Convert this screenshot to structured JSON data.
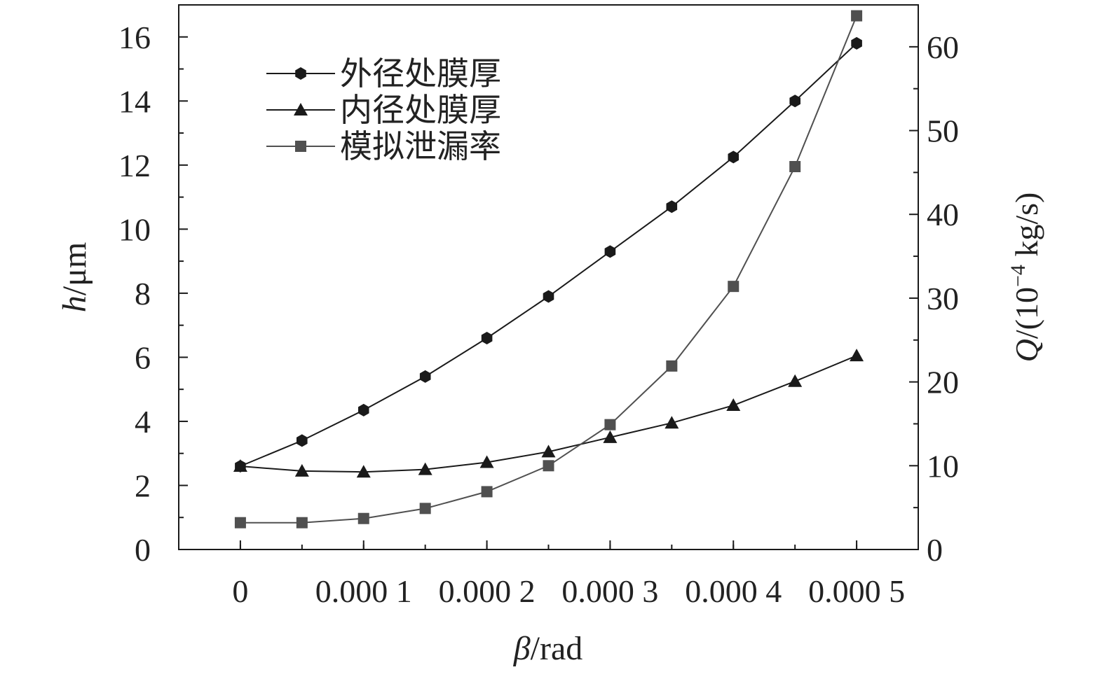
{
  "chart_data": {
    "type": "line",
    "title": "",
    "x": [
      0,
      5e-05,
      0.0001,
      0.00015,
      0.0002,
      0.00025,
      0.0003,
      0.00035,
      0.0004,
      0.00045,
      0.0005
    ],
    "xlim": [
      -5e-05,
      0.00055
    ],
    "xticks": [
      {
        "value": 0,
        "label": "0"
      },
      {
        "value": 0.0001,
        "label": "0.000 1"
      },
      {
        "value": 0.0002,
        "label": "0.000 2"
      },
      {
        "value": 0.0003,
        "label": "0.000 3"
      },
      {
        "value": 0.0004,
        "label": "0.000 4"
      },
      {
        "value": 0.0005,
        "label": "0.000 5"
      }
    ],
    "xlabel": {
      "italic": "β",
      "rest": "/rad"
    },
    "y_left": {
      "label": {
        "italic": "h",
        "rest": "/μm"
      },
      "ylim": [
        0,
        17
      ],
      "ticks": [
        {
          "value": 0,
          "label": "0"
        },
        {
          "value": 2,
          "label": "2"
        },
        {
          "value": 4,
          "label": "4"
        },
        {
          "value": 6,
          "label": "6"
        },
        {
          "value": 8,
          "label": "8"
        },
        {
          "value": 10,
          "label": "10"
        },
        {
          "value": 12,
          "label": "12"
        },
        {
          "value": 14,
          "label": "14"
        },
        {
          "value": 16,
          "label": "16"
        }
      ]
    },
    "y_right": {
      "label": {
        "italic": "Q",
        "rest": "/(10",
        "sup": "−4",
        "tail": " kg/s)"
      },
      "ylim": [
        0,
        65
      ],
      "ticks": [
        {
          "value": 0,
          "label": "0"
        },
        {
          "value": 10,
          "label": "10"
        },
        {
          "value": 20,
          "label": "20"
        },
        {
          "value": 30,
          "label": "30"
        },
        {
          "value": 40,
          "label": "40"
        },
        {
          "value": 50,
          "label": "50"
        },
        {
          "value": 60,
          "label": "60"
        }
      ]
    },
    "series": [
      {
        "name": "外径处膜厚",
        "axis": "left",
        "marker": "hexagon",
        "color": "#1a1a1a",
        "values": [
          2.6,
          3.4,
          4.35,
          5.4,
          6.6,
          7.9,
          9.3,
          10.7,
          12.25,
          14.0,
          15.8
        ]
      },
      {
        "name": "内径处膜厚",
        "axis": "left",
        "marker": "triangle",
        "color": "#1a1a1a",
        "values": [
          2.6,
          2.45,
          2.42,
          2.5,
          2.72,
          3.05,
          3.5,
          3.95,
          4.5,
          5.25,
          6.05
        ]
      },
      {
        "name": "模拟泄漏率",
        "axis": "right",
        "marker": "square",
        "color": "#505050",
        "values": [
          3.2,
          3.2,
          3.7,
          4.9,
          6.9,
          10.0,
          14.9,
          21.9,
          31.4,
          45.7,
          63.7
        ]
      }
    ],
    "legend_position": "top-left",
    "grid": false
  }
}
